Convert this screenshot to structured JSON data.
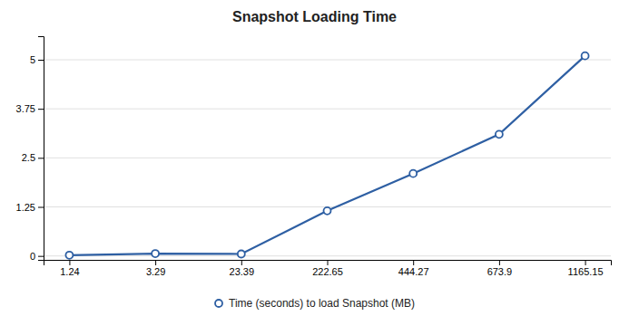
{
  "chart_data": {
    "type": "line",
    "title": "Snapshot Loading Time",
    "categories": [
      "1.24",
      "3.29",
      "23.39",
      "222.65",
      "444.27",
      "673.9",
      "1165.15"
    ],
    "series": [
      {
        "name": "Time (seconds) to load Snapshot (MB)",
        "color": "#2E5FA3",
        "marker": "circle",
        "values": [
          0.02,
          0.06,
          0.05,
          1.15,
          2.1,
          3.1,
          5.1
        ]
      }
    ],
    "ylim": [
      -0.1,
      5.6
    ],
    "yticks": [
      0,
      1.25,
      2.5,
      3.75,
      5
    ],
    "grid": true,
    "legend": "bottom"
  }
}
